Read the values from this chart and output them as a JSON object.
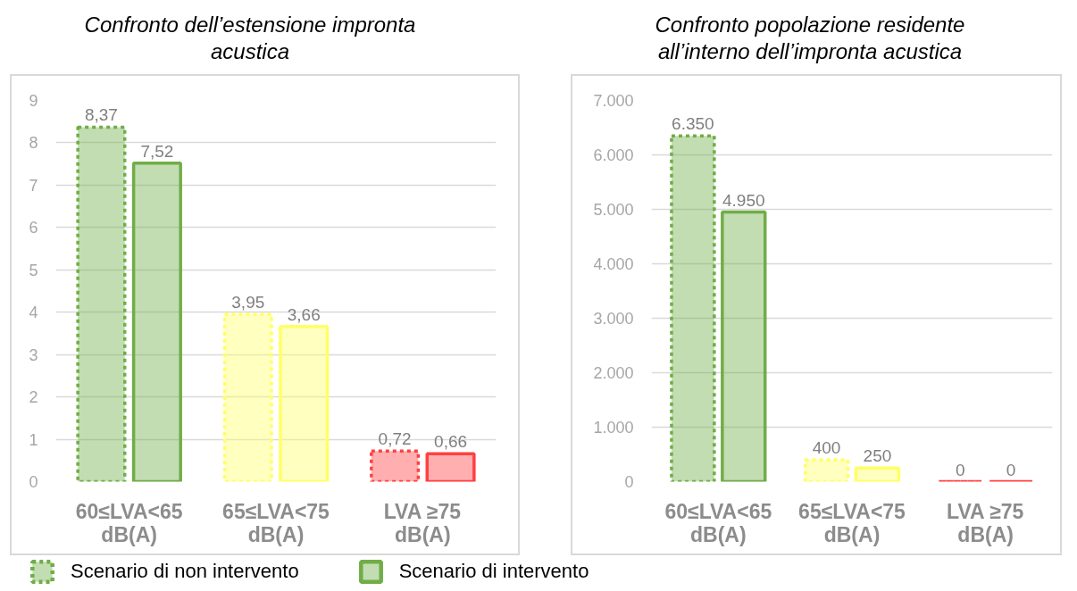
{
  "chart_data": [
    {
      "type": "bar",
      "title": "Confronto dell’estensione impronta acustica",
      "categories": [
        "60≤LVA<65 dB(A)",
        "65≤LVA<75 dB(A)",
        "LVA ≥75 dB(A)"
      ],
      "series": [
        {
          "name": "Scenario di non intervento",
          "colors": [
            "#70ad47",
            "#ffff66",
            "#ff4040"
          ],
          "line_style": "dotted",
          "values": [
            8.37,
            3.95,
            0.72
          ],
          "value_labels": [
            "8,37",
            "3,95",
            "0,72"
          ]
        },
        {
          "name": "Scenario di intervento",
          "colors": [
            "#70ad47",
            "#ffff66",
            "#ff4040"
          ],
          "line_style": "solid",
          "values": [
            7.52,
            3.66,
            0.66
          ],
          "value_labels": [
            "7,52",
            "3,66",
            "0,66"
          ]
        }
      ],
      "ylim": [
        0,
        9
      ],
      "yticks": [
        0,
        1,
        2,
        3,
        4,
        5,
        6,
        7,
        8,
        9
      ],
      "grid": "y",
      "legend": "bottom"
    },
    {
      "type": "bar",
      "title": "Confronto popolazione residente all’interno dell’impronta acustica",
      "categories": [
        "60≤LVA<65 dB(A)",
        "65≤LVA<75 dB(A)",
        "LVA ≥75 dB(A)"
      ],
      "series": [
        {
          "colors": [
            "#70ad47",
            "#ffff66",
            "#ff4040"
          ],
          "line_style": "dotted",
          "values": [
            6350,
            400,
            0
          ],
          "value_labels": [
            "6.350",
            "400",
            "0"
          ]
        },
        {
          "colors": [
            "#70ad47",
            "#ffff66",
            "#ff4040"
          ],
          "line_style": "solid",
          "values": [
            4950,
            250,
            0
          ],
          "value_labels": [
            "4.950",
            "250",
            "0"
          ]
        }
      ],
      "ylim": [
        0,
        7000
      ],
      "yticks": [
        0,
        {
          "value": 1000,
          "label": "1.000"
        },
        {
          "value": 2000,
          "label": "2.000"
        },
        {
          "value": 3000,
          "label": "3.000"
        },
        {
          "value": 4000,
          "label": "4.000"
        },
        {
          "value": 5000,
          "label": "5.000"
        },
        {
          "value": 6000,
          "label": "6.000"
        },
        {
          "value": 7000,
          "label": "7.000"
        }
      ],
      "grid": "y"
    }
  ]
}
